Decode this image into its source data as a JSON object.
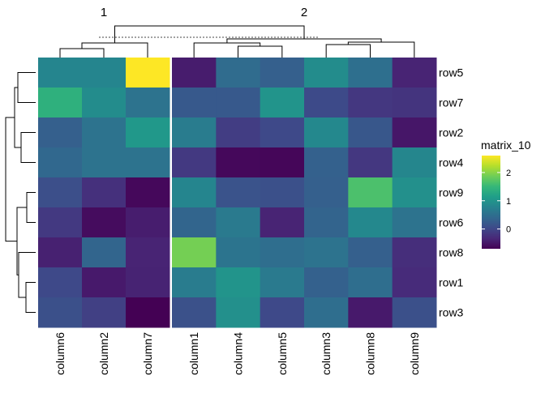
{
  "chart_data": {
    "type": "heatmap",
    "title": "",
    "column_slices": [
      {
        "label": "1",
        "columns": [
          "column6",
          "column2",
          "column7"
        ]
      },
      {
        "label": "2",
        "columns": [
          "column1",
          "column4",
          "column5",
          "column3",
          "column8",
          "column9"
        ]
      }
    ],
    "columns": [
      "column6",
      "column2",
      "column7",
      "column1",
      "column4",
      "column5",
      "column3",
      "column8",
      "column9"
    ],
    "rows": [
      "row5",
      "row7",
      "row2",
      "row4",
      "row9",
      "row6",
      "row8",
      "row1",
      "row3"
    ],
    "values": [
      [
        0.8,
        0.8,
        2.6,
        -0.45,
        0.45,
        0.3,
        0.9,
        0.5,
        -0.37
      ],
      [
        1.4,
        0.9,
        0.55,
        0.22,
        0.22,
        1.0,
        0.05,
        -0.17,
        -0.2
      ],
      [
        0.3,
        0.55,
        1.05,
        0.68,
        -0.1,
        0.03,
        0.85,
        0.2,
        -0.5
      ],
      [
        0.4,
        0.55,
        0.55,
        -0.14,
        -0.63,
        -0.65,
        0.32,
        -0.17,
        0.82
      ],
      [
        0.1,
        -0.24,
        -0.63,
        0.8,
        0.15,
        0.12,
        0.3,
        1.65,
        0.95
      ],
      [
        -0.14,
        -0.6,
        -0.44,
        0.36,
        0.65,
        -0.37,
        0.35,
        0.85,
        0.55
      ],
      [
        -0.4,
        0.36,
        -0.37,
        1.9,
        0.57,
        0.48,
        0.55,
        0.3,
        -0.27
      ],
      [
        0.03,
        -0.47,
        -0.38,
        0.68,
        1.0,
        0.65,
        0.32,
        0.48,
        -0.3
      ],
      [
        0.12,
        -0.07,
        -0.7,
        0.13,
        0.95,
        0.03,
        0.48,
        -0.47,
        0.12
      ]
    ],
    "colormap": "viridis",
    "color_range": [
      -0.7,
      2.6
    ],
    "legend": {
      "title": "matrix_10",
      "ticks": [
        0,
        1,
        2
      ],
      "tick_labels": [
        "0",
        "1",
        "2"
      ],
      "placement": "right"
    },
    "row_dendrogram": true,
    "column_dendrogram": true
  }
}
